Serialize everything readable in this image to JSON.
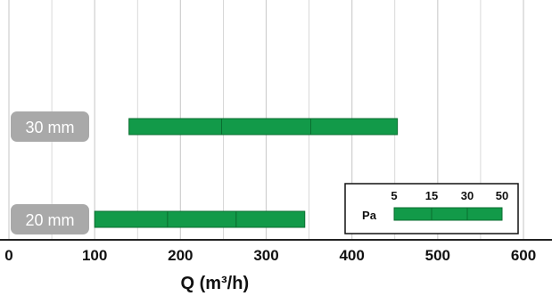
{
  "chart_data": {
    "type": "range-bar",
    "xlabel": "Q (m³/h)",
    "xlim": [
      0,
      600
    ],
    "xticks": [
      0,
      100,
      200,
      300,
      400,
      500,
      600
    ],
    "grid": true,
    "rows": [
      {
        "label": "30 mm",
        "segments": [
          140,
          248,
          352,
          453
        ]
      },
      {
        "label": "20 mm",
        "segments": [
          100,
          185,
          265,
          345
        ]
      }
    ],
    "pressure_legend": {
      "unit": "Pa",
      "values": [
        "5",
        "15",
        "30",
        "50"
      ],
      "placement": "bottom-right"
    },
    "colors": {
      "bar": "#129a49",
      "bar_border": "#0b6e30",
      "label_bg": "#a9a9a9",
      "grid": "#cfcfcf",
      "axis": "#222222"
    }
  }
}
